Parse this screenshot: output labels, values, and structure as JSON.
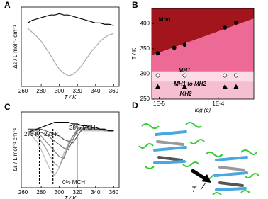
{
  "chart_data": [
    {
      "type": "line",
      "label": "A",
      "xlabel": "T / K",
      "ylabel": "Δε / L mol⁻¹ cm⁻¹",
      "x": [
        265,
        270,
        275,
        280,
        285,
        290,
        295,
        300,
        305,
        310,
        315,
        320,
        325,
        330,
        335,
        340,
        345,
        350,
        355,
        360
      ],
      "xlim": [
        258,
        366
      ],
      "xticks": [
        260,
        280,
        300,
        320,
        340,
        360
      ],
      "ylim": [
        -22,
        8
      ],
      "series": [
        {
          "color": "#000000",
          "values": [
            2,
            3,
            3.5,
            4,
            4.5,
            5,
            5,
            5.5,
            5,
            5,
            4.5,
            4,
            3.5,
            3,
            2.5,
            2,
            2,
            1.5,
            1.5,
            1
          ]
        },
        {
          "color": "#aaaaaa",
          "values": [
            0,
            -1.5,
            -3,
            -5,
            -7.5,
            -10,
            -13,
            -15.5,
            -17,
            -18,
            -17.5,
            -16,
            -14,
            -11.5,
            -9,
            -7,
            -5,
            -3.5,
            -2.5,
            -2
          ]
        }
      ]
    },
    {
      "type": "scatter",
      "label": "B",
      "xlabel": "log (c)",
      "ylabel": "T / K",
      "log_x": true,
      "xlim": [
        7.5e-06,
        0.0004
      ],
      "xticks": [
        {
          "value": 1e-05,
          "label": "1E-5"
        },
        {
          "value": 0.0001,
          "label": "1E-4"
        }
      ],
      "ylim": [
        250,
        430
      ],
      "yticks": [
        250,
        300,
        350,
        400
      ],
      "regions": [
        {
          "label": "Mon",
          "color": "#a3151c",
          "lower": [
            337,
            410
          ]
        },
        {
          "label": "MH1",
          "color": "#ec6a95",
          "lower": [
            305,
            305
          ]
        },
        {
          "label": "MH1 to MH2",
          "color": "#fbdbe6",
          "lower": [
            285,
            285
          ]
        },
        {
          "label": "MH2",
          "color": "#f5bfd1",
          "lower": [
            250,
            250
          ]
        }
      ],
      "series": [
        {
          "marker": "circle",
          "color": "#000000",
          "x": [
            9.5e-06,
            1.8e-05,
            2.7e-05,
            0.00013,
            0.0002
          ],
          "values": [
            341,
            352,
            358,
            392,
            402
          ]
        },
        {
          "marker": "circle",
          "color": "#ffffff",
          "x": [
            9.5e-06,
            2.7e-05,
            0.00013,
            0.0002
          ],
          "values": [
            297,
            297,
            297,
            297
          ]
        },
        {
          "marker": "triangle",
          "color": "#000000",
          "x": [
            9.5e-06,
            2.7e-05,
            0.00013,
            0.0002
          ],
          "values": [
            275,
            275,
            275,
            275
          ]
        }
      ]
    },
    {
      "type": "line",
      "label": "C",
      "xlabel": "T / K",
      "ylabel": "Δε / L mol⁻¹ cm⁻¹",
      "x": [
        265,
        270,
        275,
        280,
        285,
        290,
        295,
        300,
        305,
        310,
        315,
        320,
        325,
        330,
        335,
        340,
        345,
        350,
        355,
        360
      ],
      "xlim": [
        258,
        366
      ],
      "xticks": [
        260,
        280,
        300,
        320,
        340,
        360
      ],
      "ylim": [
        -16,
        6
      ],
      "annotations": [
        "278 K",
        "293 K",
        "38% MCH",
        "0% MCH"
      ],
      "reference_lines": [
        {
          "value": 278,
          "style": "dashed"
        },
        {
          "value": 293,
          "style": "dashed"
        },
        {
          "value": 320,
          "style": "solid"
        }
      ],
      "series": [
        {
          "color": "#bbbbbb",
          "values": [
            0,
            -1,
            -2.5,
            -5,
            -8,
            -11,
            -12.5,
            -10,
            -6,
            -3,
            -1,
            0,
            0.5,
            0.5,
            0.5,
            0.5,
            0.5,
            0.5,
            0.5,
            0.5
          ]
        },
        {
          "color": "#a0a0a0",
          "values": [
            0.5,
            0,
            -1,
            -2.5,
            -4.5,
            -7,
            -9,
            -10,
            -7,
            -3.5,
            -1,
            0.5,
            1,
            1,
            1,
            1,
            1,
            0.5,
            0.5,
            0.5
          ]
        },
        {
          "color": "#888888",
          "values": [
            1,
            0.5,
            0,
            -1,
            -2.5,
            -4,
            -5.5,
            -7,
            -7.5,
            -4,
            -1,
            1,
            1.5,
            1.5,
            1,
            1,
            1,
            0.5,
            0.5,
            0.5
          ]
        },
        {
          "color": "#707070",
          "values": [
            1,
            1,
            0.5,
            0,
            -0.5,
            -1.5,
            -2.5,
            -3.5,
            -4.5,
            -5,
            -2,
            0.5,
            1.5,
            1.5,
            1.5,
            1,
            1,
            1,
            0.5,
            0.5
          ]
        },
        {
          "color": "#585858",
          "values": [
            1,
            1,
            1,
            1,
            0.5,
            0,
            -0.5,
            -1,
            -2,
            -2.5,
            -3,
            -1,
            1,
            1.5,
            1.5,
            1,
            1,
            1,
            0.5,
            0.5
          ]
        },
        {
          "color": "#000000",
          "values": [
            0,
            0.5,
            1,
            1.5,
            2,
            2.5,
            3,
            3,
            3,
            3,
            2.5,
            2.5,
            2,
            2,
            1.5,
            1.5,
            1,
            1,
            0.5,
            0.5
          ]
        }
      ]
    }
  ],
  "diagram": {
    "label": "D",
    "arrow_label": "T"
  }
}
